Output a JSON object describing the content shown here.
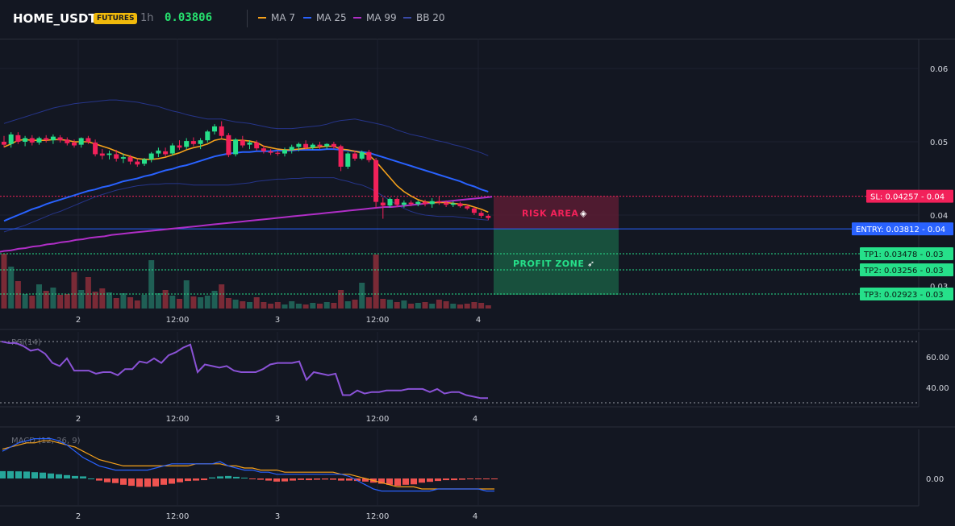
{
  "header": {
    "symbol": "HOME_USDT",
    "badge": "FUTURES",
    "timeframe": "1h",
    "price": "0.03806",
    "legend": [
      {
        "label": "MA 7",
        "color": "#f7a21b"
      },
      {
        "label": "MA 25",
        "color": "#2962ff"
      },
      {
        "label": "MA 99",
        "color": "#b02ec7"
      },
      {
        "label": "BB 20",
        "color": "#2e3b8f"
      }
    ]
  },
  "colors": {
    "up": "#26e08a",
    "down": "#f2215a",
    "ma7": "#f7a21b",
    "ma25": "#2962ff",
    "ma99": "#b02ec7",
    "bb": "#26358a",
    "rsi": "#8a52d6",
    "macd_line": "#2962ff",
    "signal_line": "#f7a21b",
    "hist_up": "#26a69a",
    "hist_down": "#ef5350"
  },
  "chart_data": [
    {
      "type": "candlestick",
      "x_tick_labels": [
        "2",
        "12:00",
        "3",
        "12:00",
        "4"
      ],
      "y_tick_labels": [
        "0.06",
        "0.05",
        "0.04",
        "0.03"
      ],
      "ylim": [
        0.028,
        0.063
      ],
      "candles": [
        [
          0.05,
          0.0508,
          0.0492,
          0.0496
        ],
        [
          0.0497,
          0.0513,
          0.0492,
          0.051
        ],
        [
          0.0509,
          0.0513,
          0.0497,
          0.05
        ],
        [
          0.05,
          0.0508,
          0.0494,
          0.0505
        ],
        [
          0.0505,
          0.0509,
          0.0495,
          0.0499
        ],
        [
          0.0499,
          0.0507,
          0.0496,
          0.0505
        ],
        [
          0.0505,
          0.0509,
          0.0499,
          0.0502
        ],
        [
          0.0502,
          0.051,
          0.0497,
          0.0507
        ],
        [
          0.0506,
          0.0509,
          0.0499,
          0.0502
        ],
        [
          0.0503,
          0.0506,
          0.0495,
          0.0498
        ],
        [
          0.0499,
          0.0503,
          0.0492,
          0.0495
        ],
        [
          0.0496,
          0.0506,
          0.0492,
          0.0505
        ],
        [
          0.0505,
          0.0508,
          0.0497,
          0.05
        ],
        [
          0.0499,
          0.0503,
          0.048,
          0.0483
        ],
        [
          0.0484,
          0.049,
          0.0476,
          0.0481
        ],
        [
          0.0482,
          0.0488,
          0.0476,
          0.0484
        ],
        [
          0.0483,
          0.0489,
          0.0473,
          0.0477
        ],
        [
          0.0477,
          0.0484,
          0.0471,
          0.0479
        ],
        [
          0.0479,
          0.0482,
          0.0469,
          0.0473
        ],
        [
          0.0473,
          0.0476,
          0.0466,
          0.0469
        ],
        [
          0.047,
          0.0478,
          0.0467,
          0.0476
        ],
        [
          0.0476,
          0.0486,
          0.0472,
          0.0484
        ],
        [
          0.0484,
          0.0492,
          0.0479,
          0.0488
        ],
        [
          0.0487,
          0.0492,
          0.048,
          0.0483
        ],
        [
          0.0484,
          0.0498,
          0.0481,
          0.0495
        ],
        [
          0.0495,
          0.0502,
          0.0489,
          0.0492
        ],
        [
          0.0493,
          0.0505,
          0.049,
          0.0501
        ],
        [
          0.0501,
          0.0506,
          0.0494,
          0.0497
        ],
        [
          0.0497,
          0.0505,
          0.049,
          0.0502
        ],
        [
          0.0502,
          0.0516,
          0.0499,
          0.0514
        ],
        [
          0.0514,
          0.0524,
          0.051,
          0.0521
        ],
        [
          0.0521,
          0.0528,
          0.0505,
          0.0508
        ],
        [
          0.0509,
          0.0512,
          0.0479,
          0.0482
        ],
        [
          0.0483,
          0.0505,
          0.048,
          0.0503
        ],
        [
          0.0502,
          0.0508,
          0.0492,
          0.0495
        ],
        [
          0.0496,
          0.0502,
          0.049,
          0.0499
        ],
        [
          0.0499,
          0.0502,
          0.0488,
          0.0491
        ],
        [
          0.0491,
          0.0495,
          0.0484,
          0.0487
        ],
        [
          0.0487,
          0.049,
          0.0482,
          0.0485
        ],
        [
          0.0485,
          0.0488,
          0.0481,
          0.0484
        ],
        [
          0.0484,
          0.0492,
          0.048,
          0.0489
        ],
        [
          0.0489,
          0.0496,
          0.0484,
          0.0493
        ],
        [
          0.0493,
          0.0499,
          0.0487,
          0.0497
        ],
        [
          0.0497,
          0.0502,
          0.0489,
          0.0492
        ],
        [
          0.0492,
          0.0498,
          0.0489,
          0.0496
        ],
        [
          0.0496,
          0.05,
          0.049,
          0.0494
        ],
        [
          0.0494,
          0.0498,
          0.049,
          0.0497
        ],
        [
          0.0497,
          0.05,
          0.049,
          0.0493
        ],
        [
          0.0494,
          0.0496,
          0.046,
          0.0466
        ],
        [
          0.0466,
          0.0486,
          0.0463,
          0.0484
        ],
        [
          0.0484,
          0.0488,
          0.0474,
          0.0477
        ],
        [
          0.0477,
          0.0488,
          0.0475,
          0.0486
        ],
        [
          0.0486,
          0.0489,
          0.0472,
          0.0475
        ],
        [
          0.0475,
          0.0478,
          0.041,
          0.0418
        ],
        [
          0.0417,
          0.0424,
          0.0395,
          0.0413
        ],
        [
          0.0413,
          0.0424,
          0.041,
          0.0422
        ],
        [
          0.0422,
          0.0424,
          0.0411,
          0.0414
        ],
        [
          0.0414,
          0.042,
          0.041,
          0.0417
        ],
        [
          0.0417,
          0.042,
          0.0412,
          0.0415
        ],
        [
          0.0415,
          0.042,
          0.0412,
          0.0418
        ],
        [
          0.0418,
          0.0421,
          0.0412,
          0.0415
        ],
        [
          0.0415,
          0.0423,
          0.041,
          0.0419
        ],
        [
          0.0419,
          0.0426,
          0.0414,
          0.0417
        ],
        [
          0.0417,
          0.042,
          0.0411,
          0.0414
        ],
        [
          0.0414,
          0.0419,
          0.0411,
          0.0416
        ],
        [
          0.0416,
          0.0418,
          0.041,
          0.0412
        ],
        [
          0.0412,
          0.0415,
          0.0407,
          0.0409
        ],
        [
          0.0409,
          0.0411,
          0.04,
          0.0403
        ],
        [
          0.0403,
          0.0406,
          0.0396,
          0.0399
        ],
        [
          0.0399,
          0.0401,
          0.0393,
          0.0396
        ]
      ],
      "ma7": [
        0.0493,
        0.0497,
        0.0502,
        0.0503,
        0.0502,
        0.0502,
        0.0502,
        0.0503,
        0.0503,
        0.0502,
        0.05,
        0.05,
        0.05,
        0.0497,
        0.0494,
        0.0491,
        0.0487,
        0.0483,
        0.048,
        0.0477,
        0.0476,
        0.0476,
        0.0477,
        0.0479,
        0.0482,
        0.0485,
        0.0489,
        0.0492,
        0.0494,
        0.0497,
        0.0502,
        0.0504,
        0.0502,
        0.0502,
        0.0502,
        0.0501,
        0.0499,
        0.0494,
        0.0492,
        0.049,
        0.0489,
        0.0489,
        0.049,
        0.0491,
        0.0492,
        0.0493,
        0.0494,
        0.0494,
        0.049,
        0.0489,
        0.0487,
        0.0485,
        0.0482,
        0.0473,
        0.0462,
        0.0451,
        0.044,
        0.0432,
        0.0426,
        0.0421,
        0.0418,
        0.0417,
        0.0417,
        0.0417,
        0.0416,
        0.0415,
        0.0414,
        0.0411,
        0.0408,
        0.0404
      ],
      "ma25": [
        0.0392,
        0.0396,
        0.04,
        0.0404,
        0.0408,
        0.0411,
        0.0415,
        0.0418,
        0.0421,
        0.0424,
        0.0427,
        0.043,
        0.0433,
        0.0435,
        0.0438,
        0.044,
        0.0443,
        0.0446,
        0.0448,
        0.045,
        0.0453,
        0.0455,
        0.0458,
        0.0461,
        0.0463,
        0.0466,
        0.0468,
        0.0471,
        0.0474,
        0.0477,
        0.048,
        0.0482,
        0.0484,
        0.0485,
        0.0486,
        0.0486,
        0.0487,
        0.0487,
        0.0487,
        0.0488,
        0.0488,
        0.0488,
        0.0489,
        0.0489,
        0.0489,
        0.0489,
        0.049,
        0.049,
        0.0489,
        0.0488,
        0.0487,
        0.0486,
        0.0485,
        0.0482,
        0.0479,
        0.0476,
        0.0473,
        0.047,
        0.0467,
        0.0464,
        0.0461,
        0.0458,
        0.0455,
        0.0452,
        0.0449,
        0.0446,
        0.0442,
        0.0439,
        0.0435,
        0.0432
      ],
      "ma99": [
        0.0349,
        0.0351,
        0.0352,
        0.0354,
        0.0355,
        0.0357,
        0.0358,
        0.036,
        0.0361,
        0.0363,
        0.0364,
        0.0366,
        0.0367,
        0.0369,
        0.037,
        0.0371,
        0.0373,
        0.0374,
        0.0375,
        0.0376,
        0.0377,
        0.0378,
        0.0379,
        0.038,
        0.0381,
        0.0382,
        0.0383,
        0.0384,
        0.0385,
        0.0386,
        0.0387,
        0.0388,
        0.0389,
        0.039,
        0.0391,
        0.0392,
        0.0393,
        0.0394,
        0.0395,
        0.0396,
        0.0397,
        0.0398,
        0.0399,
        0.04,
        0.0401,
        0.0402,
        0.0403,
        0.0404,
        0.0405,
        0.0406,
        0.0407,
        0.0408,
        0.0409,
        0.041,
        0.0411,
        0.0411,
        0.0412,
        0.0413,
        0.0414,
        0.0415,
        0.0416,
        0.0417,
        0.0418,
        0.0419,
        0.042,
        0.0421,
        0.0422,
        0.0423,
        0.0424,
        0.0425
      ],
      "bb_upper": [
        0.0525,
        0.0528,
        0.0531,
        0.0534,
        0.0537,
        0.054,
        0.0543,
        0.0546,
        0.0548,
        0.055,
        0.0552,
        0.0553,
        0.0554,
        0.0555,
        0.0556,
        0.0557,
        0.0557,
        0.0556,
        0.0555,
        0.0554,
        0.0552,
        0.055,
        0.0548,
        0.0545,
        0.0542,
        0.054,
        0.0537,
        0.0535,
        0.0533,
        0.0531,
        0.0531,
        0.0531,
        0.0529,
        0.0527,
        0.0526,
        0.0525,
        0.0523,
        0.0521,
        0.0519,
        0.0518,
        0.0518,
        0.0518,
        0.0519,
        0.052,
        0.0521,
        0.0522,
        0.0524,
        0.0527,
        0.0529,
        0.053,
        0.0531,
        0.0529,
        0.0527,
        0.0525,
        0.0523,
        0.052,
        0.0516,
        0.0513,
        0.051,
        0.0508,
        0.0506,
        0.0503,
        0.0501,
        0.0499,
        0.0496,
        0.0494,
        0.0491,
        0.0488,
        0.0485,
        0.0481
      ],
      "bb_lower": [
        0.0377,
        0.038,
        0.0383,
        0.0386,
        0.039,
        0.0394,
        0.0398,
        0.0402,
        0.0405,
        0.0409,
        0.0413,
        0.0417,
        0.0421,
        0.0425,
        0.0428,
        0.0431,
        0.0434,
        0.0436,
        0.0438,
        0.044,
        0.0441,
        0.0442,
        0.0442,
        0.0443,
        0.0443,
        0.0443,
        0.0442,
        0.0441,
        0.0441,
        0.0441,
        0.0441,
        0.0441,
        0.0441,
        0.0442,
        0.0443,
        0.0444,
        0.0446,
        0.0447,
        0.0448,
        0.0449,
        0.0449,
        0.045,
        0.045,
        0.0451,
        0.0451,
        0.0451,
        0.0451,
        0.0451,
        0.0448,
        0.0446,
        0.0443,
        0.0441,
        0.0437,
        0.0432,
        0.0426,
        0.042,
        0.0414,
        0.0409,
        0.0405,
        0.0402,
        0.04,
        0.0399,
        0.0398,
        0.0398,
        0.0398,
        0.0397,
        0.0396,
        0.0395,
        0.0394,
        0.0393
      ],
      "volume": [
        6.8,
        5.2,
        3.4,
        1.8,
        1.6,
        3.0,
        2.2,
        2.6,
        1.7,
        1.8,
        4.5,
        2.3,
        3.9,
        2.1,
        2.5,
        2.0,
        1.3,
        1.9,
        1.4,
        1.0,
        1.7,
        6.0,
        1.9,
        2.3,
        1.6,
        1.2,
        3.5,
        1.5,
        1.4,
        1.6,
        2.2,
        3.0,
        1.3,
        1.1,
        0.9,
        0.8,
        1.4,
        0.8,
        0.6,
        0.8,
        0.5,
        0.9,
        0.6,
        0.5,
        0.7,
        0.6,
        0.8,
        0.7,
        2.3,
        0.9,
        1.1,
        3.2,
        1.4,
        6.7,
        1.2,
        1.1,
        0.8,
        1.0,
        0.6,
        0.7,
        0.8,
        0.6,
        1.1,
        0.9,
        0.6,
        0.5,
        0.6,
        0.8,
        0.7,
        0.4
      ],
      "annotations": {
        "sl_label": "SL: 0.04257",
        "sl_value": 0.04257,
        "sl_axis": "0.04",
        "entry_label": "ENTRY: 0.03812",
        "entry_value": 0.03812,
        "entry_axis": "0.04",
        "tp1_label": "TP1: 0.03478",
        "tp1_value": 0.03478,
        "tp1_axis": "0.03",
        "tp2_label": "TP2: 0.03256",
        "tp2_value": 0.03256,
        "tp2_axis": "0.03",
        "tp3_label": "TP3: 0.02923",
        "tp3_value": 0.02923,
        "tp3_axis": "0.03",
        "risk_label": "RISK AREA",
        "profit_label": "PROFIT ZONE"
      }
    },
    {
      "type": "line",
      "title": "RSI(14)",
      "y_tick_labels": [
        "60.00",
        "40.00"
      ],
      "ylim": [
        25,
        75
      ],
      "overbought": 70,
      "oversold": 30,
      "values": [
        70,
        69,
        69,
        67,
        64,
        65,
        62,
        56,
        54,
        59,
        51,
        51,
        51,
        49,
        50,
        50,
        48,
        52,
        52,
        57,
        56,
        59,
        56,
        61,
        63,
        66,
        68,
        50,
        55,
        54,
        53,
        54,
        51,
        50,
        50,
        50,
        52,
        55,
        56,
        56,
        56,
        57,
        45,
        50,
        49,
        48,
        49,
        35,
        35,
        38,
        36,
        37,
        37,
        38,
        38,
        38,
        39,
        39,
        39,
        37,
        39,
        36,
        37,
        37,
        35,
        34,
        33,
        33
      ]
    },
    {
      "type": "line",
      "title": "MACD (12, 26, 9)",
      "y_tick_labels": [
        "0.00"
      ],
      "ylim": [
        -0.0012,
        0.0025
      ],
      "macd": [
        0.0013,
        0.0015,
        0.0017,
        0.0018,
        0.0019,
        0.0019,
        0.0019,
        0.0018,
        0.0016,
        0.0013,
        0.001,
        0.0008,
        0.0006,
        0.0005,
        0.0004,
        0.0004,
        0.0004,
        0.0004,
        0.0004,
        0.0005,
        0.0006,
        0.0007,
        0.0007,
        0.0007,
        0.0007,
        0.0007,
        0.0007,
        0.0008,
        0.0006,
        0.0005,
        0.0004,
        0.0004,
        0.0003,
        0.0003,
        0.0002,
        0.0002,
        0.0002,
        0.0002,
        0.0002,
        0.0002,
        0.0002,
        0.0002,
        0.0002,
        0.0001,
        -0.0001,
        -0.0003,
        -0.0005,
        -0.0006,
        -0.0006,
        -0.0006,
        -0.0006,
        -0.0006,
        -0.0006,
        -0.0006,
        -0.0005,
        -0.0005,
        -0.0005,
        -0.0005,
        -0.0005,
        -0.0005,
        -0.0006,
        -0.0006
      ],
      "signal": [
        0.0014,
        0.0015,
        0.0016,
        0.0017,
        0.0017,
        0.0018,
        0.0018,
        0.0017,
        0.0016,
        0.0015,
        0.0013,
        0.0011,
        0.0009,
        0.0008,
        0.0007,
        0.0006,
        0.0006,
        0.0006,
        0.0006,
        0.0006,
        0.0006,
        0.0006,
        0.0006,
        0.0006,
        0.0007,
        0.0007,
        0.0007,
        0.0007,
        0.0006,
        0.0006,
        0.0005,
        0.0005,
        0.0004,
        0.0004,
        0.0004,
        0.0003,
        0.0003,
        0.0003,
        0.0003,
        0.0003,
        0.0003,
        0.0003,
        0.0002,
        0.0002,
        0.0001,
        0.0,
        -0.0001,
        -0.0002,
        -0.0003,
        -0.0004,
        -0.0004,
        -0.0004,
        -0.0005,
        -0.0005,
        -0.0005,
        -0.0005,
        -0.0005,
        -0.0005,
        -0.0005,
        -0.0005,
        -0.0005,
        -0.0005
      ],
      "histogram": [
        0.00035,
        0.00035,
        0.00034,
        0.00033,
        0.0003,
        0.00028,
        0.00024,
        0.0002,
        0.00016,
        0.00012,
        0.0001,
        0.0,
        -0.0001,
        -0.00018,
        -0.00022,
        -0.0003,
        -0.00035,
        -0.0004,
        -0.0004,
        -0.00038,
        -0.0003,
        -0.00025,
        -0.00018,
        -0.00012,
        -0.0001,
        -8e-05,
        5e-05,
        0.0001,
        0.00012,
        8e-05,
        4e-05,
        -3e-05,
        -6e-05,
        -0.0001,
        -0.00015,
        -0.00014,
        -0.0001,
        -7e-05,
        -8e-05,
        -6e-05,
        -5e-05,
        -6e-05,
        -0.0001,
        -0.0001,
        -0.00012,
        -0.00015,
        -0.0002,
        -0.00025,
        -0.0003,
        -0.00035,
        -0.0003,
        -0.00028,
        -0.0002,
        -0.00016,
        -0.00012,
        -8e-05,
        -8e-05,
        -6e-05,
        -3e-05,
        -3e-05,
        -2e-05,
        -3e-05
      ]
    }
  ]
}
